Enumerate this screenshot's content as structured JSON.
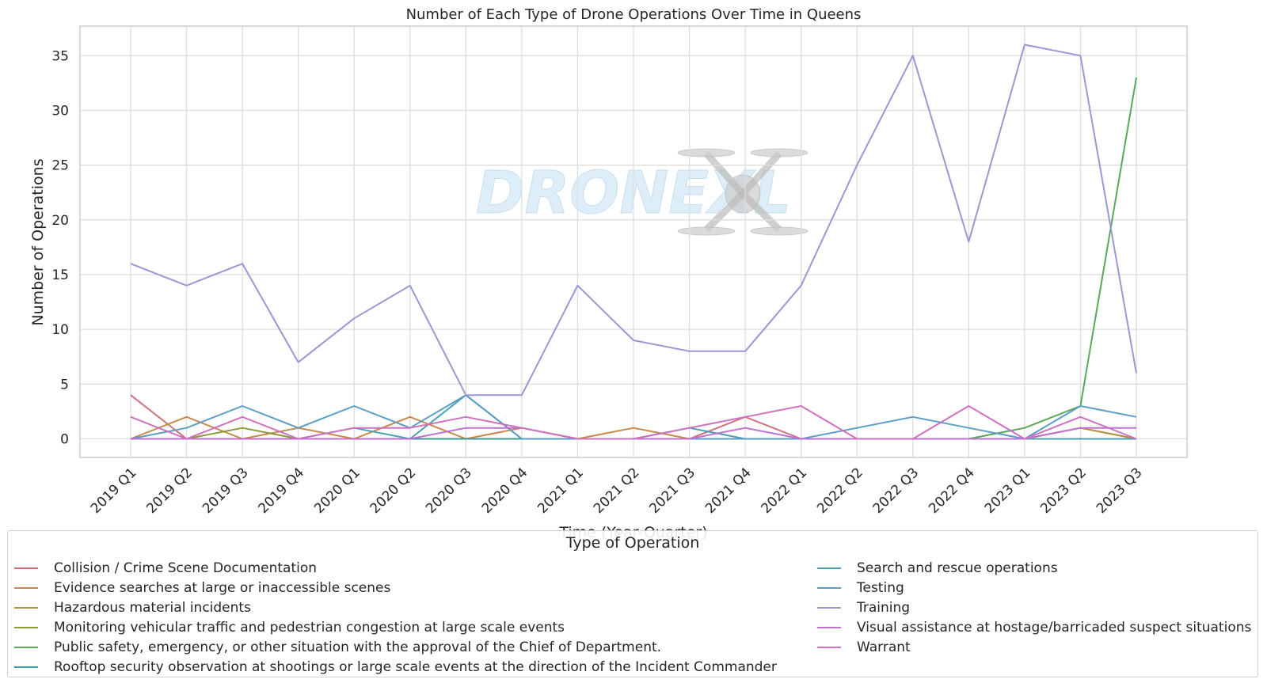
{
  "chart_data": {
    "type": "line",
    "title": "Number of Each Type of Drone Operations Over Time in Queens",
    "xlabel": "Time (Year-Quarter)",
    "ylabel": "Number of Operations",
    "ylim": [
      -1.7,
      37.7
    ],
    "yticks": [
      0,
      5,
      10,
      15,
      20,
      25,
      30,
      35
    ],
    "grid": true,
    "legend_title": "Type of Operation",
    "legend_placement": "bottom",
    "watermark": "DRONEXL",
    "categories": [
      "2019 Q1",
      "2019 Q2",
      "2019 Q3",
      "2019 Q4",
      "2020 Q1",
      "2020 Q2",
      "2020 Q3",
      "2020 Q4",
      "2021 Q1",
      "2021 Q2",
      "2021 Q3",
      "2021 Q4",
      "2022 Q1",
      "2022 Q2",
      "2022 Q3",
      "2022 Q4",
      "2023 Q1",
      "2023 Q2",
      "2023 Q3"
    ],
    "series": [
      {
        "name": "Collision / Crime Scene Documentation",
        "color": "#d0707a",
        "values": [
          4,
          0,
          0,
          0,
          0,
          0,
          0,
          0,
          0,
          0,
          0,
          2,
          0,
          0,
          0,
          0,
          0,
          0,
          0
        ]
      },
      {
        "name": "Evidence searches at large or inaccessible scenes",
        "color": "#c8884a",
        "values": [
          0,
          2,
          0,
          1,
          0,
          2,
          0,
          1,
          0,
          1,
          0,
          0,
          0,
          0,
          0,
          0,
          0,
          1,
          0
        ]
      },
      {
        "name": "Hazardous material incidents",
        "color": "#b09540",
        "values": [
          0,
          0,
          0,
          0,
          0,
          0,
          0,
          0,
          0,
          0,
          0,
          0,
          0,
          0,
          0,
          0,
          0,
          1,
          0
        ]
      },
      {
        "name": "Monitoring vehicular traffic and pedestrian congestion at large scale events",
        "color": "#8c9a3c",
        "values": [
          0,
          0,
          1,
          0,
          0,
          0,
          0,
          0,
          0,
          0,
          0,
          0,
          0,
          0,
          0,
          0,
          0,
          0,
          0
        ]
      },
      {
        "name": "Public safety, emergency, or other situation with the approval of the Chief of Department.",
        "color": "#5aa85a",
        "values": [
          0,
          0,
          0,
          0,
          0,
          0,
          0,
          0,
          0,
          0,
          0,
          0,
          0,
          0,
          0,
          0,
          1,
          3,
          33
        ]
      },
      {
        "name": "Rooftop security observation at shootings or large scale events at the direction of the Incident Commander",
        "color": "#3b9a9a",
        "values": [
          0,
          0,
          0,
          0,
          0,
          0,
          0,
          0,
          0,
          0,
          0,
          0,
          0,
          0,
          0,
          0,
          0,
          0,
          0
        ]
      },
      {
        "name": "Search and rescue operations",
        "color": "#4aa0b4",
        "values": [
          0,
          0,
          0,
          0,
          1,
          0,
          4,
          0,
          0,
          0,
          1,
          0,
          0,
          0,
          0,
          0,
          0,
          0,
          0
        ]
      },
      {
        "name": "Testing",
        "color": "#5a9ec8",
        "values": [
          0,
          1,
          3,
          1,
          3,
          1,
          4,
          0,
          0,
          0,
          0,
          0,
          0,
          1,
          2,
          1,
          0,
          3,
          2
        ]
      },
      {
        "name": "Training",
        "color": "#9898d4",
        "values": [
          16,
          14,
          16,
          7,
          11,
          14,
          4,
          4,
          14,
          9,
          8,
          8,
          14,
          25,
          35,
          18,
          36,
          35,
          6
        ]
      },
      {
        "name": "Visual assistance at hostage/barricaded suspect situations",
        "color": "#c070d0",
        "values": [
          0,
          0,
          0,
          0,
          0,
          0,
          1,
          1,
          0,
          0,
          0,
          1,
          0,
          0,
          0,
          0,
          0,
          1,
          1
        ]
      },
      {
        "name": "Warrant",
        "color": "#d070c0",
        "values": [
          2,
          0,
          2,
          0,
          1,
          1,
          2,
          1,
          0,
          0,
          1,
          2,
          3,
          0,
          0,
          3,
          0,
          2,
          0
        ]
      }
    ]
  }
}
